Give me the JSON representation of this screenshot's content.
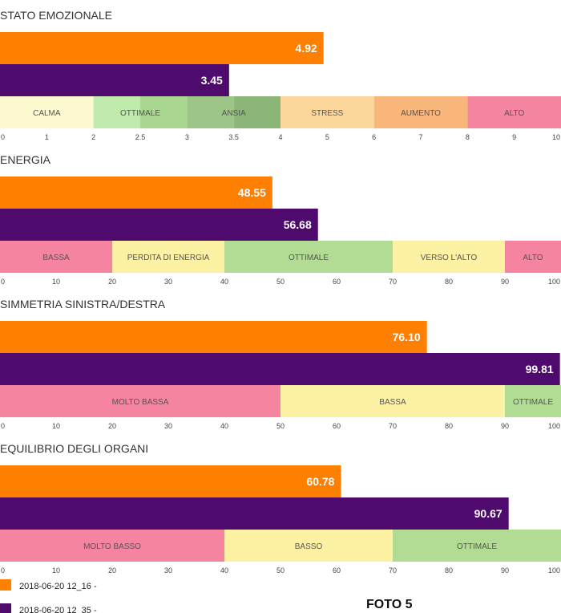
{
  "caption": "FOTO 5",
  "colors": {
    "series_1": "#ff7f00",
    "series_2": "#4f0a6e"
  },
  "legend": [
    {
      "label": "2018-06-20 12_16 -",
      "color": "#ff7f00"
    },
    {
      "label": "2018-06-20 12_35 -",
      "color": "#4f0a6e"
    }
  ],
  "chart_data": [
    {
      "type": "bar",
      "orientation": "horizontal",
      "title": "STATO EMOZIONALE",
      "axis": {
        "scale": "piecewise",
        "ticks": [
          {
            "label": "0",
            "pos": 0
          },
          {
            "label": "1",
            "pos": 1
          },
          {
            "label": "2",
            "pos": 2
          },
          {
            "label": "2.5",
            "pos": 3
          },
          {
            "label": "3",
            "pos": 4
          },
          {
            "label": "3.5",
            "pos": 5
          },
          {
            "label": "4",
            "pos": 6
          },
          {
            "label": "5",
            "pos": 7
          },
          {
            "label": "6",
            "pos": 8
          },
          {
            "label": "7",
            "pos": 9
          },
          {
            "label": "8",
            "pos": 10
          },
          {
            "label": "9",
            "pos": 11
          },
          {
            "label": "10",
            "pos": 12
          }
        ],
        "breakpoints": [
          [
            0,
            0
          ],
          [
            2,
            2
          ],
          [
            4,
            6
          ],
          [
            10,
            12
          ]
        ],
        "range": [
          0,
          10
        ]
      },
      "series": [
        {
          "name": "2018-06-20 12_16 -",
          "value": 4.92,
          "label": "4.92"
        },
        {
          "name": "2018-06-20 12_35 -",
          "value": 3.45,
          "label": "3.45"
        }
      ],
      "bands": [
        {
          "label": "CALMA",
          "from": 0,
          "to": 2,
          "color": "#fcf8d0"
        },
        {
          "label": "OTTIMALE",
          "from": 2,
          "to": 3,
          "color": "#c0ebad",
          "split_at": 2.5,
          "color2": "#a9d78f"
        },
        {
          "label": "ANSIA",
          "from": 3,
          "to": 4,
          "color": "#9dc588",
          "split_at": 3.5,
          "color2": "#8bb677"
        },
        {
          "label": "STRESS",
          "from": 4,
          "to": 6,
          "color": "#fdd69b"
        },
        {
          "label": "AUMENTO",
          "from": 6,
          "to": 8,
          "color": "#f9b77b"
        },
        {
          "label": "ALTO",
          "from": 8,
          "to": 10,
          "color": "#f484a0"
        }
      ]
    },
    {
      "type": "bar",
      "orientation": "horizontal",
      "title": "ENERGIA",
      "axis": {
        "scale": "linear",
        "ticks": [
          {
            "label": "0",
            "pos": 0
          },
          {
            "label": "10",
            "pos": 10
          },
          {
            "label": "20",
            "pos": 20
          },
          {
            "label": "30",
            "pos": 30
          },
          {
            "label": "40",
            "pos": 40
          },
          {
            "label": "50",
            "pos": 50
          },
          {
            "label": "60",
            "pos": 60
          },
          {
            "label": "70",
            "pos": 70
          },
          {
            "label": "80",
            "pos": 80
          },
          {
            "label": "90",
            "pos": 90
          },
          {
            "label": "100",
            "pos": 100
          }
        ],
        "breakpoints": [
          [
            0,
            0
          ],
          [
            100,
            100
          ]
        ],
        "range": [
          0,
          100
        ]
      },
      "series": [
        {
          "name": "2018-06-20 12_16 -",
          "value": 48.55,
          "label": "48.55"
        },
        {
          "name": "2018-06-20 12_35 -",
          "value": 56.68,
          "label": "56.68"
        }
      ],
      "bands": [
        {
          "label": "BASSA",
          "from": 0,
          "to": 20,
          "color": "#f484a0"
        },
        {
          "label": "PERDITA DI ENERGIA",
          "from": 20,
          "to": 40,
          "color": "#fdf1a3"
        },
        {
          "label": "OTTIMALE",
          "from": 40,
          "to": 70,
          "color": "#b2dc93"
        },
        {
          "label": "VERSO L'ALTO",
          "from": 70,
          "to": 90,
          "color": "#fdf1a3"
        },
        {
          "label": "ALTO",
          "from": 90,
          "to": 100,
          "color": "#f484a0"
        }
      ]
    },
    {
      "type": "bar",
      "orientation": "horizontal",
      "title": "SIMMETRIA SINISTRA/DESTRA",
      "axis": {
        "scale": "linear",
        "ticks": [
          {
            "label": "0",
            "pos": 0
          },
          {
            "label": "10",
            "pos": 10
          },
          {
            "label": "20",
            "pos": 20
          },
          {
            "label": "30",
            "pos": 30
          },
          {
            "label": "40",
            "pos": 40
          },
          {
            "label": "50",
            "pos": 50
          },
          {
            "label": "60",
            "pos": 60
          },
          {
            "label": "70",
            "pos": 70
          },
          {
            "label": "80",
            "pos": 80
          },
          {
            "label": "90",
            "pos": 90
          },
          {
            "label": "100",
            "pos": 100
          }
        ],
        "breakpoints": [
          [
            0,
            0
          ],
          [
            100,
            100
          ]
        ],
        "range": [
          0,
          100
        ]
      },
      "series": [
        {
          "name": "2018-06-20 12_16 -",
          "value": 76.1,
          "label": "76.10"
        },
        {
          "name": "2018-06-20 12_35 -",
          "value": 99.81,
          "label": "99.81"
        }
      ],
      "bands": [
        {
          "label": "MOLTO BASSA",
          "from": 0,
          "to": 50,
          "color": "#f484a0"
        },
        {
          "label": "BASSA",
          "from": 50,
          "to": 90,
          "color": "#fdf1a3"
        },
        {
          "label": "OTTIMALE",
          "from": 90,
          "to": 100,
          "color": "#b2dc93"
        }
      ]
    },
    {
      "type": "bar",
      "orientation": "horizontal",
      "title": "EQUILIBRIO DEGLI ORGANI",
      "axis": {
        "scale": "linear",
        "ticks": [
          {
            "label": "0",
            "pos": 0
          },
          {
            "label": "10",
            "pos": 10
          },
          {
            "label": "20",
            "pos": 20
          },
          {
            "label": "30",
            "pos": 30
          },
          {
            "label": "40",
            "pos": 40
          },
          {
            "label": "50",
            "pos": 50
          },
          {
            "label": "60",
            "pos": 60
          },
          {
            "label": "70",
            "pos": 70
          },
          {
            "label": "80",
            "pos": 80
          },
          {
            "label": "90",
            "pos": 90
          },
          {
            "label": "100",
            "pos": 100
          }
        ],
        "breakpoints": [
          [
            0,
            0
          ],
          [
            100,
            100
          ]
        ],
        "range": [
          0,
          100
        ]
      },
      "series": [
        {
          "name": "2018-06-20 12_16 -",
          "value": 60.78,
          "label": "60.78"
        },
        {
          "name": "2018-06-20 12_35 -",
          "value": 90.67,
          "label": "90.67"
        }
      ],
      "bands": [
        {
          "label": "MOLTO BASSO",
          "from": 0,
          "to": 40,
          "color": "#f484a0"
        },
        {
          "label": "BASSO",
          "from": 40,
          "to": 70,
          "color": "#fdf1a3"
        },
        {
          "label": "OTTIMALE",
          "from": 70,
          "to": 100,
          "color": "#b2dc93"
        }
      ]
    }
  ]
}
